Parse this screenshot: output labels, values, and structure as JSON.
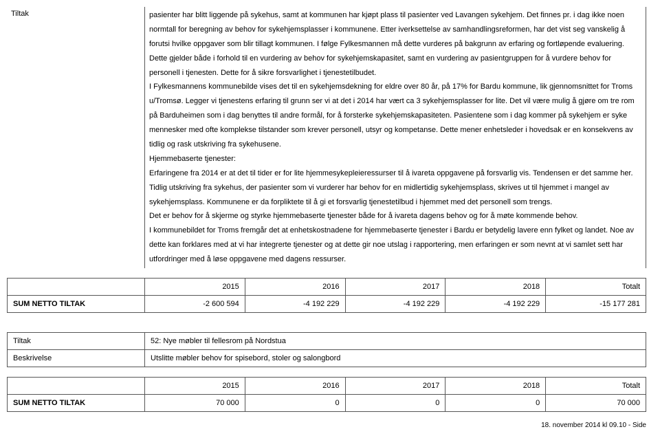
{
  "section1": {
    "left_label": "Tiltak",
    "description": "pasienter har blitt liggende på sykehus, samt at kommunen har kjøpt plass til pasienter ved Lavangen sykehjem. Det finnes pr. i dag   ikke noen normtall for beregning av behov for sykehjemsplasser i kommunene. Etter iverksettelse av samhandlingsreformen, har det vist seg vanskelig å forutsi hvilke oppgaver som blir tillagt kommunen. I følge Fylkesmannen må dette vurderes på bakgrunn av erfaring og fortløpende evaluering. Dette gjelder både i forhold til en vurdering av behov for sykehjemskapasitet, samt en vurdering av pasientgruppen for å vurdere behov for personell i tjenesten. Dette for å sikre forsvarlighet i tjenestetilbudet.\nI Fylkesmannens kommunebilde vises det til en sykehjemsdekning for eldre over 80 år, på 17% for Bardu kommune, lik gjennomsnittet for Troms u/Tromsø. Legger vi tjenestens erfaring til grunn ser vi at det i   2014 har vært ca 3 sykehjemsplasser for lite. Det vil være mulig å gjøre om tre rom på Barduheimen som i dag benyttes til andre formål, for å forsterke sykehjemskapasiteten. Pasientene som i dag kommer på sykehjem er syke mennesker med ofte komplekse tilstander som krever personell, utsyr og kompetanse. Dette mener enhetsleder i hovedsak er en konsekvens av tidlig og rask utskriving fra sykehusene.\nHjemmebaserte tjenester:\nErfaringene fra 2014 er at det til tider er for lite hjemmesykepleieressurser til å ivareta oppgavene på forsvarlig vis. Tendensen er det samme her. Tidlig utskriving fra sykehus, der pasienter som vi vurderer har behov for en midlertidig sykehjemsplass, skrives ut til hjemmet i mangel av sykehjemsplass. Kommunene er da forpliktete til å gi et forsvarlig tjenestetilbud i hjemmet med det personell som trengs.\n Det er behov for å skjerme og styrke hjemmebaserte tjenester både for å ivareta dagens behov og for å møte kommende behov.\nI kommunebildet for Troms fremgår det at enhetskostnadene for hjemmebaserte tjenester i Bardu er betydelig lavere enn fylket og landet. Noe av dette kan forklares med at vi har integrerte tjenester og at dette gir noe utslag i rapportering, men erfaringen er som nevnt at vi samlet sett har utfordringer med å løse oppgavene med dagens ressurser."
  },
  "table1": {
    "headers": [
      "",
      "2015",
      "2016",
      "2017",
      "2018",
      "Totalt"
    ],
    "row_label": "SUM NETTO TILTAK",
    "values": [
      "-2 600 594",
      "-4 192 229",
      "-4 192 229",
      "-4 192 229",
      "-15 177 281"
    ]
  },
  "section2": {
    "rows": [
      {
        "label": "Tiltak",
        "value": "52: Nye møbler til fellesrom på Nordstua"
      },
      {
        "label": "Beskrivelse",
        "value": "Utslitte møbler behov for spisebord, stoler og salongbord"
      }
    ]
  },
  "table2": {
    "headers": [
      "",
      "2015",
      "2016",
      "2017",
      "2018",
      "Totalt"
    ],
    "row_label": "SUM NETTO TILTAK",
    "values": [
      "70 000",
      "0",
      "0",
      "0",
      "70 000"
    ]
  },
  "footer": "18. november 2014 kl 09.10 - Side"
}
